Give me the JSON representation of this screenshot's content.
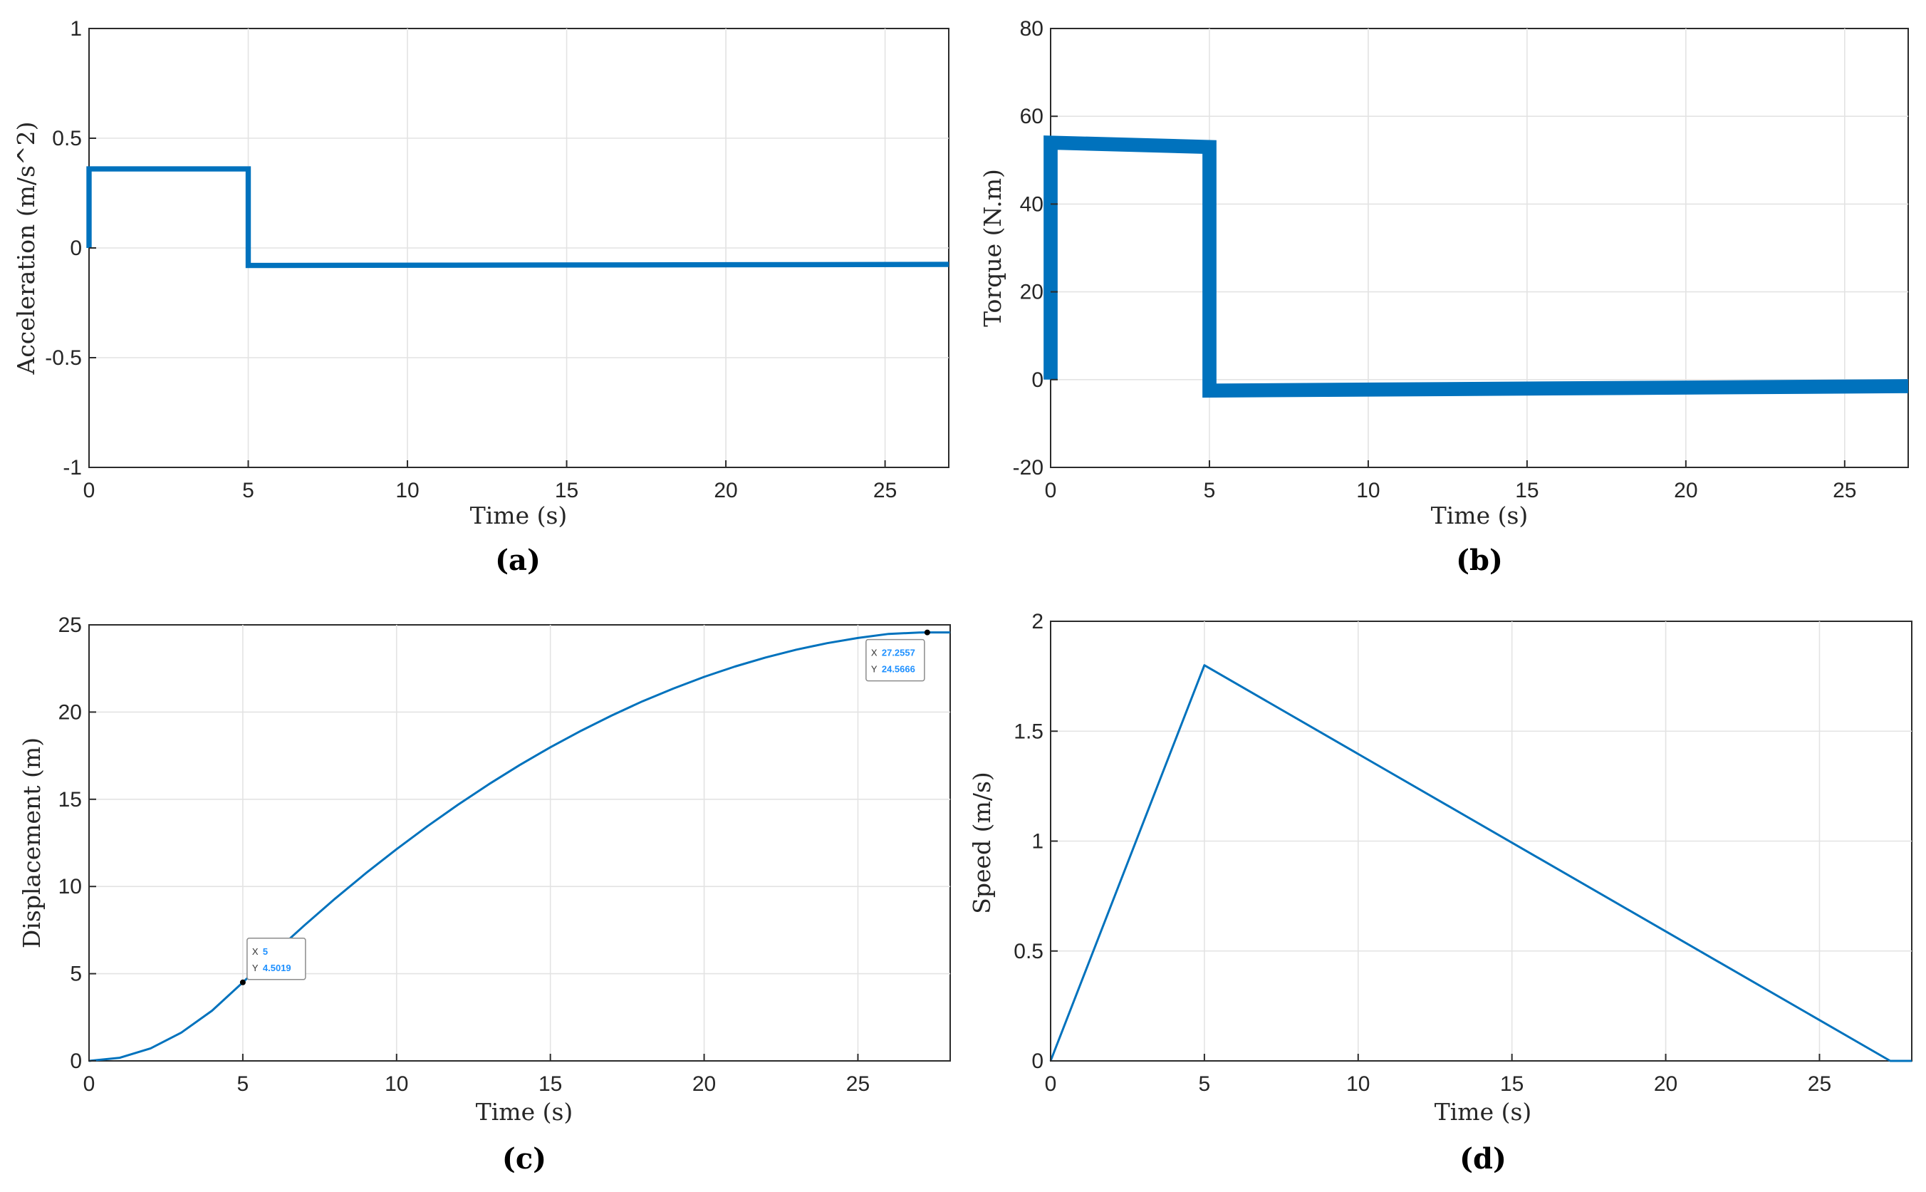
{
  "colors": {
    "series": "#0072BD",
    "tip_value": "#1E90FF"
  },
  "chart_data": [
    {
      "id": "a",
      "type": "line",
      "panel_label": "(a)",
      "xlabel": "Time (s)",
      "ylabel": "Acceleration (m/s^2)",
      "xlim": [
        0,
        27
      ],
      "ylim": [
        -1,
        1
      ],
      "xticks": [
        0,
        5,
        10,
        15,
        20,
        25
      ],
      "yticks": [
        -1,
        -0.5,
        0,
        0.5,
        1
      ],
      "ytick_labels": [
        "-1",
        "-0.5",
        "0",
        "0.5",
        "1"
      ],
      "series": [
        {
          "name": "acceleration",
          "x": [
            0,
            0,
            5,
            5,
            27
          ],
          "y": [
            0,
            0.36,
            0.36,
            -0.08,
            -0.075
          ],
          "band": 0.012
        }
      ]
    },
    {
      "id": "b",
      "type": "line",
      "panel_label": "(b)",
      "xlabel": "Time (s)",
      "ylabel": "Torque (N.m)",
      "xlim": [
        0,
        27
      ],
      "ylim": [
        -20,
        80
      ],
      "xticks": [
        0,
        5,
        10,
        15,
        20,
        25
      ],
      "yticks": [
        -20,
        0,
        20,
        40,
        60,
        80
      ],
      "ytick_labels": [
        "-20",
        "0",
        "20",
        "40",
        "60",
        "80"
      ],
      "series": [
        {
          "name": "torque",
          "x": [
            0,
            0,
            5,
            5,
            27
          ],
          "y": [
            0,
            54,
            53,
            -2.5,
            -1.5
          ],
          "band": 1.6
        }
      ]
    },
    {
      "id": "c",
      "type": "line",
      "panel_label": "(c)",
      "xlabel": "Time (s)",
      "ylabel": "Displacement (m)",
      "xlim": [
        0,
        28
      ],
      "ylim": [
        0,
        25
      ],
      "xticks": [
        0,
        5,
        10,
        15,
        20,
        25
      ],
      "yticks": [
        0,
        5,
        10,
        15,
        20,
        25
      ],
      "ytick_labels": [
        "0",
        "5",
        "10",
        "15",
        "20",
        "25"
      ],
      "series": [
        {
          "name": "displacement",
          "x": [
            0,
            1,
            2,
            3,
            4,
            5,
            6,
            7,
            8,
            9,
            10,
            11,
            12,
            13,
            14,
            15,
            16,
            17,
            18,
            19,
            20,
            21,
            22,
            23,
            24,
            25,
            26,
            27,
            27.2557,
            28
          ],
          "y": [
            0,
            0.18,
            0.72,
            1.62,
            2.88,
            4.5019,
            6.17,
            7.77,
            9.3,
            10.76,
            12.14,
            13.45,
            14.69,
            15.86,
            16.96,
            17.98,
            18.93,
            19.81,
            20.62,
            21.35,
            22.02,
            22.61,
            23.13,
            23.58,
            23.95,
            24.25,
            24.48,
            24.56,
            24.5666,
            24.5666
          ]
        }
      ],
      "datatips": [
        {
          "x_label": "X",
          "x_value": "5",
          "y_label": "Y",
          "y_value": "4.5019",
          "at": [
            5,
            4.5019
          ]
        },
        {
          "x_label": "X",
          "x_value": "27.2557",
          "y_label": "Y",
          "y_value": "24.5666",
          "at": [
            27.2557,
            24.5666
          ]
        }
      ]
    },
    {
      "id": "d",
      "type": "line",
      "panel_label": "(d)",
      "xlabel": "Time (s)",
      "ylabel": "Speed (m/s)",
      "xlim": [
        0,
        28
      ],
      "ylim": [
        0,
        2
      ],
      "xticks": [
        0,
        5,
        10,
        15,
        20,
        25
      ],
      "yticks": [
        0,
        0.5,
        1,
        1.5,
        2
      ],
      "ytick_labels": [
        "0",
        "0.5",
        "1",
        "1.5",
        "2"
      ],
      "series": [
        {
          "name": "speed",
          "x": [
            0,
            5,
            27.3,
            28
          ],
          "y": [
            0,
            1.8,
            0,
            0
          ]
        }
      ]
    }
  ]
}
